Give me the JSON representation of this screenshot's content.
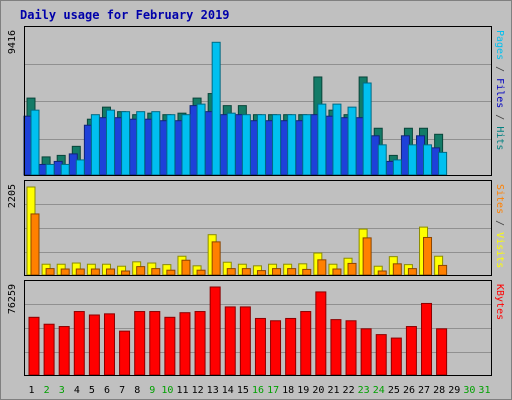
{
  "chart_data": {
    "type": "bar",
    "title": "Daily usage for February 2019",
    "categories": [
      "1",
      "2",
      "3",
      "4",
      "5",
      "6",
      "7",
      "8",
      "9",
      "10",
      "11",
      "12",
      "13",
      "14",
      "15",
      "16",
      "17",
      "18",
      "19",
      "20",
      "21",
      "22",
      "23",
      "24",
      "25",
      "26",
      "27",
      "28",
      "29",
      "30",
      "31"
    ],
    "weekend_days": [
      "2",
      "3",
      "9",
      "10",
      "16",
      "17",
      "23",
      "24",
      "30",
      "31"
    ],
    "panels": [
      {
        "id": "traffic",
        "max_label": "9416",
        "ylim": [
          0,
          9416
        ],
        "right_label": [
          {
            "text": "Pages",
            "color": "#00c0f0"
          },
          {
            "text": " / ",
            "color": "#404040"
          },
          {
            "text": "Files",
            "color": "#0000c0"
          },
          {
            "text": " / ",
            "color": "#404040"
          },
          {
            "text": "Hits",
            "color": "#008080"
          }
        ],
        "series": [
          {
            "name": "Hits",
            "color": "#137b67",
            "values": [
              5100,
              1200,
              1300,
              1900,
              3700,
              4500,
              4200,
              4000,
              4100,
              4000,
              4100,
              5100,
              5400,
              4600,
              4600,
              4000,
              4000,
              4000,
              4000,
              6500,
              4300,
              4000,
              6500,
              3100,
              1300,
              3100,
              3100,
              2700,
              0,
              0,
              0
            ]
          },
          {
            "name": "Files",
            "color": "#1e41d9",
            "values": [
              3900,
              700,
              900,
              1400,
              3300,
              3800,
              3800,
              3700,
              3700,
              3600,
              3600,
              4600,
              4200,
              4000,
              4000,
              3600,
              3600,
              3600,
              3600,
              4000,
              3900,
              3800,
              3800,
              2600,
              900,
              2600,
              2600,
              1800,
              0,
              0,
              0
            ]
          },
          {
            "name": "Pages",
            "color": "#00c0f0",
            "values": [
              4300,
              700,
              700,
              1000,
              4000,
              4300,
              4200,
              4200,
              4200,
              4000,
              4000,
              4700,
              8800,
              4100,
              4000,
              4000,
              4000,
              4000,
              4000,
              4700,
              4700,
              4500,
              6100,
              2000,
              1000,
              2000,
              2000,
              1500,
              0,
              0,
              0
            ]
          }
        ]
      },
      {
        "id": "visits",
        "max_label": "2205",
        "ylim": [
          0,
          2205
        ],
        "right_label": [
          {
            "text": "Sites",
            "color": "#ff8000"
          },
          {
            "text": " / ",
            "color": "#404040"
          },
          {
            "text": "Visits",
            "color": "#ffff00"
          }
        ],
        "series": [
          {
            "name": "Visits",
            "color": "#ffff00",
            "values": [
              2205,
              270,
              270,
              300,
              270,
              270,
              220,
              330,
              300,
              260,
              470,
              230,
              1010,
              320,
              270,
              230,
              270,
              270,
              280,
              550,
              270,
              420,
              1150,
              220,
              460,
              260,
              1200,
              470,
              0,
              0,
              0
            ]
          },
          {
            "name": "Sites",
            "color": "#ff8000",
            "values": [
              1530,
              160,
              150,
              150,
              150,
              150,
              100,
              210,
              160,
              120,
              370,
              120,
              830,
              160,
              160,
              110,
              160,
              160,
              140,
              380,
              150,
              290,
              930,
              100,
              280,
              160,
              940,
              240,
              0,
              0,
              0
            ]
          }
        ]
      },
      {
        "id": "kbytes",
        "max_label": "76259",
        "ylim": [
          0,
          76259
        ],
        "right_label": [
          {
            "text": "KBytes",
            "color": "#ff0000"
          }
        ],
        "series": [
          {
            "name": "KBytes",
            "color": "#ff0000",
            "values": [
              50000,
              44000,
              42000,
              55000,
              52000,
              53000,
              38000,
              55000,
              55000,
              50000,
              54000,
              55000,
              76259,
              59000,
              59000,
              49000,
              47000,
              49000,
              55000,
              72000,
              48000,
              47000,
              40000,
              35000,
              32000,
              42000,
              62000,
              40000,
              0,
              0,
              0
            ]
          }
        ]
      }
    ]
  }
}
